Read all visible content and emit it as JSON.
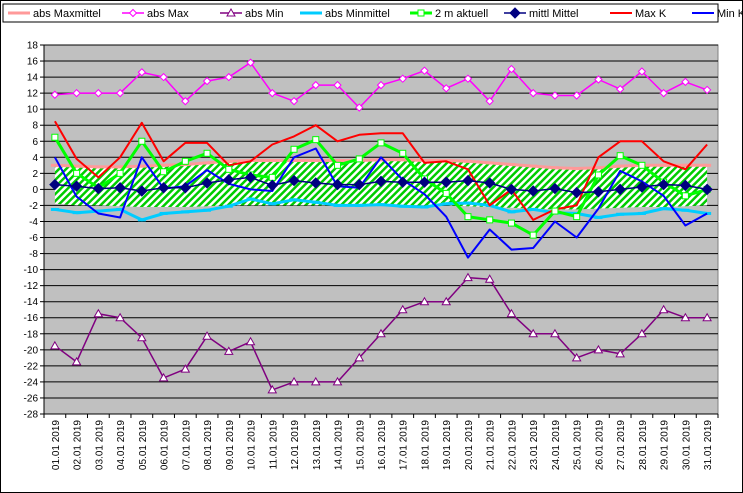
{
  "chart_data": {
    "type": "line",
    "ylim": [
      -28,
      18
    ],
    "y_ticks": [
      "18",
      "16",
      "14",
      "12",
      "10",
      "8",
      "6",
      "4",
      "2",
      "0",
      "-2",
      "-4",
      "-6",
      "-8",
      "-10",
      "-12",
      "-14",
      "-16",
      "-18",
      "-20",
      "-22",
      "-24",
      "-26",
      "-28"
    ],
    "categories": [
      "01.01 2019",
      "02.01 2019",
      "03.01 2019",
      "04.01 2019",
      "05.01 2019",
      "06.01 2019",
      "07.01 2019",
      "08.01 2019",
      "09.01 2019",
      "10.01 2019",
      "11.01 2019",
      "12.01 2019",
      "13.01 2019",
      "14.01 2019",
      "15.01 2019",
      "16.01 2019",
      "17.01 2019",
      "18.01 2019",
      "19.01 2019",
      "20.01 2019",
      "21.01 2019",
      "22.01 2019",
      "23.01 2019",
      "24.01 2019",
      "25.01 2019",
      "26.01 2019",
      "27.01 2019",
      "28.01 2019",
      "29.01 2019",
      "30.01 2019",
      "31.01 2019"
    ],
    "grid": true,
    "background_color": "#c0c0c0",
    "band": {
      "upper": [
        3.0,
        2.9,
        2.8,
        2.8,
        2.9,
        3.0,
        3.1,
        3.3,
        3.5,
        3.6,
        3.6,
        3.6,
        3.6,
        3.6,
        3.6,
        3.7,
        3.7,
        3.6,
        3.6,
        3.5,
        3.3,
        3.1,
        2.9,
        2.7,
        2.6,
        2.7,
        2.9,
        3.0,
        3.0,
        3.0,
        3.0
      ],
      "lower": [
        -1.8,
        -2.0,
        -2.0,
        -2.1,
        -2.2,
        -2.2,
        -2.2,
        -2.1,
        -2.0,
        -2.0,
        -2.0,
        -2.0,
        -2.0,
        -2.0,
        -2.0,
        -2.0,
        -2.0,
        -2.0,
        -2.0,
        -2.1,
        -2.2,
        -2.3,
        -2.4,
        -2.5,
        -2.5,
        -2.4,
        -2.3,
        -2.2,
        -2.2,
        -2.1,
        -2.0
      ],
      "fill": "#00cc00"
    },
    "series": [
      {
        "name": "abs Maxmittel",
        "color": "#ff9999",
        "marker": "dash",
        "width": 3,
        "values": [
          3.0,
          2.9,
          2.8,
          2.8,
          2.9,
          3.0,
          3.1,
          3.3,
          3.5,
          3.6,
          3.6,
          3.6,
          3.6,
          3.6,
          3.6,
          3.7,
          3.7,
          3.6,
          3.6,
          3.5,
          3.3,
          3.1,
          2.9,
          2.7,
          2.6,
          2.7,
          2.9,
          3.0,
          3.0,
          3.0,
          3.0
        ]
      },
      {
        "name": "abs Max",
        "color": "#ff00ff",
        "marker": "diamond-open",
        "width": 1.5,
        "values": [
          11.8,
          12.0,
          12.0,
          12.0,
          14.6,
          14.0,
          11.0,
          13.5,
          14.0,
          15.8,
          12.0,
          11.0,
          13.0,
          13.0,
          10.2,
          13.0,
          13.8,
          14.8,
          12.6,
          13.8,
          11.0,
          15.0,
          12.0,
          11.7,
          11.7,
          13.7,
          12.5,
          14.7,
          12.0,
          13.4,
          12.4
        ]
      },
      {
        "name": "abs Min",
        "color": "#800080",
        "marker": "triangle-open",
        "width": 1.5,
        "values": [
          -19.5,
          -21.5,
          -15.5,
          -16.0,
          -18.5,
          -23.5,
          -22.4,
          -18.3,
          -20.2,
          -19.0,
          -25.0,
          -24.0,
          -24.0,
          -24.0,
          -21.0,
          -18.0,
          -15.0,
          -14.0,
          -14.0,
          -11.0,
          -11.2,
          -15.5,
          -18.0,
          -18.0,
          -21.0,
          -20.0,
          -20.5,
          -18.0,
          -15.0,
          -16.0,
          -16.0
        ]
      },
      {
        "name": "abs Minmittel",
        "color": "#00ccff",
        "marker": "dash",
        "width": 3,
        "values": [
          -2.5,
          -2.9,
          -2.7,
          -2.5,
          -3.8,
          -3.0,
          -2.8,
          -2.6,
          -2.1,
          -1.2,
          -1.8,
          -1.3,
          -1.6,
          -2.0,
          -2.0,
          -1.9,
          -2.1,
          -2.2,
          -1.8,
          -1.7,
          -2.0,
          -2.8,
          -2.5,
          -2.9,
          -3.0,
          -3.5,
          -3.1,
          -3.0,
          -2.4,
          -2.6,
          -3.0
        ]
      },
      {
        "name": "2 m aktuell",
        "color": "#00ff00",
        "marker": "square-open",
        "width": 3,
        "values": [
          6.5,
          2.0,
          0.2,
          2.0,
          6.0,
          2.2,
          3.5,
          4.5,
          2.5,
          1.8,
          1.5,
          5.0,
          6.2,
          3.0,
          3.8,
          5.8,
          4.5,
          1.3,
          -0.5,
          -3.4,
          -3.8,
          -4.2,
          -5.7,
          -2.7,
          -3.4,
          1.8,
          4.2,
          3.0,
          0.9,
          -0.8,
          0.0
        ]
      },
      {
        "name": "mittl Mittel",
        "color": "#000080",
        "marker": "diamond-filled",
        "width": 1.5,
        "values": [
          0.6,
          0.4,
          0.1,
          0.2,
          -0.2,
          0.2,
          0.2,
          0.8,
          1.2,
          1.5,
          0.5,
          1.1,
          0.8,
          0.6,
          0.6,
          1.0,
          0.9,
          0.9,
          0.9,
          1.1,
          0.8,
          0.0,
          -0.2,
          0.1,
          -0.4,
          -0.3,
          0.0,
          0.3,
          0.6,
          0.5,
          0.0
        ]
      },
      {
        "name": "Max K",
        "color": "#ff0000",
        "marker": "none",
        "width": 2,
        "values": [
          8.5,
          3.8,
          1.5,
          4.0,
          8.3,
          3.5,
          5.8,
          5.8,
          3.0,
          3.5,
          5.6,
          6.6,
          8.0,
          6.0,
          6.8,
          7.0,
          7.0,
          3.3,
          3.5,
          2.5,
          -2.0,
          0.0,
          -3.8,
          -2.5,
          -2.0,
          4.0,
          6.0,
          6.0,
          3.5,
          2.5,
          5.6
        ]
      },
      {
        "name": "Min K",
        "color": "#0000ff",
        "marker": "none",
        "width": 2,
        "values": [
          4.0,
          -0.9,
          -3.0,
          -3.5,
          4.0,
          0.1,
          0.4,
          2.4,
          0.7,
          0.0,
          -0.2,
          4.0,
          5.1,
          0.4,
          0.2,
          4.0,
          1.2,
          -0.6,
          -3.4,
          -8.5,
          -5.0,
          -7.5,
          -7.3,
          -4.0,
          -6.0,
          -2.4,
          2.3,
          1.0,
          -0.8,
          -4.5,
          -3.0
        ]
      }
    ]
  }
}
